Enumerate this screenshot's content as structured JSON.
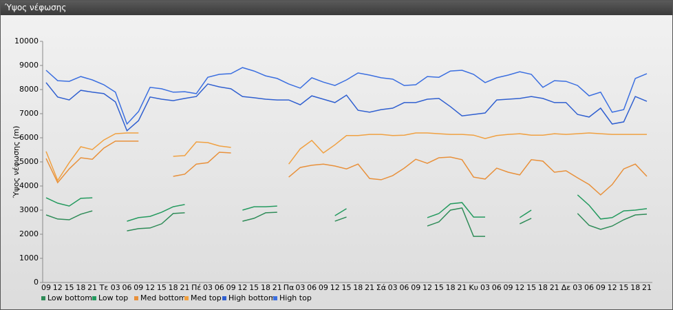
{
  "window_title": "Ύψος νέφωσης",
  "chart_data": {
    "type": "line",
    "y_label": "Ύψος νέφωσης (m)",
    "categories": [
      "09",
      "12",
      "15",
      "18",
      "21",
      "Τε",
      "03",
      "06",
      "09",
      "12",
      "15",
      "18",
      "21",
      "Πέ",
      "03",
      "06",
      "09",
      "12",
      "15",
      "18",
      "21",
      "Πα",
      "03",
      "06",
      "09",
      "12",
      "15",
      "18",
      "21",
      "Σά",
      "03",
      "06",
      "09",
      "12",
      "15",
      "18",
      "21",
      "Κυ",
      "03",
      "06",
      "09",
      "12",
      "15",
      "18",
      "21",
      "Δε",
      "03",
      "06",
      "09",
      "12",
      "15",
      "18",
      "21"
    ],
    "ylim": [
      0,
      10000
    ],
    "yticks": [
      0,
      1000,
      2000,
      3000,
      4000,
      5000,
      6000,
      7000,
      8000,
      9000,
      10000
    ],
    "legend": "bottom-left",
    "series": [
      {
        "name": "Low bottom",
        "color": "#2e8b57",
        "values": [
          2800,
          2630,
          2600,
          2830,
          2970,
          null,
          null,
          2140,
          2230,
          2260,
          2430,
          2860,
          2890,
          null,
          null,
          null,
          null,
          2540,
          2660,
          2890,
          2910,
          null,
          null,
          null,
          null,
          2540,
          2710,
          null,
          null,
          null,
          null,
          null,
          null,
          2340,
          2510,
          3000,
          3090,
          1910,
          1910,
          null,
          null,
          2430,
          2660,
          null,
          null,
          null,
          2860,
          2370,
          2200,
          2340,
          2600,
          2800,
          2830
        ]
      },
      {
        "name": "Low top",
        "color": "#239a5e",
        "values": [
          3510,
          3290,
          3170,
          3490,
          3510,
          null,
          null,
          2540,
          2690,
          2740,
          2910,
          3140,
          3230,
          null,
          null,
          null,
          null,
          3000,
          3140,
          3140,
          3170,
          null,
          null,
          null,
          null,
          2770,
          3060,
          null,
          null,
          null,
          null,
          null,
          null,
          2690,
          2860,
          3260,
          3310,
          2710,
          2710,
          null,
          null,
          2690,
          3000,
          null,
          null,
          null,
          3630,
          3200,
          2630,
          2690,
          2970,
          3000,
          3060
        ]
      },
      {
        "name": "Med bottom",
        "color": "#e8903a",
        "values": [
          5140,
          4140,
          4710,
          5170,
          5110,
          5570,
          5860,
          5860,
          5860,
          null,
          null,
          4400,
          4490,
          4910,
          4970,
          5400,
          5370,
          null,
          null,
          null,
          null,
          4370,
          4770,
          4860,
          4910,
          4830,
          4710,
          4910,
          4310,
          4260,
          4430,
          4740,
          5110,
          4940,
          5170,
          5200,
          5090,
          4370,
          4290,
          4740,
          4570,
          4460,
          5090,
          5030,
          4570,
          4630,
          4340,
          4060,
          3630,
          4060,
          4710,
          4910,
          4400
        ]
      },
      {
        "name": "Med top",
        "color": "#f0a040",
        "values": [
          5430,
          4230,
          4970,
          5630,
          5510,
          5910,
          6170,
          6200,
          6200,
          null,
          null,
          5230,
          5260,
          5830,
          5800,
          5660,
          5600,
          null,
          null,
          null,
          null,
          4910,
          5540,
          5890,
          5370,
          5710,
          6090,
          6090,
          6140,
          6140,
          6090,
          6110,
          6200,
          6200,
          6170,
          6140,
          6140,
          6110,
          5970,
          6090,
          6140,
          6170,
          6110,
          6110,
          6170,
          6140,
          6170,
          6200,
          6170,
          6140,
          6140,
          6140,
          6140
        ]
      },
      {
        "name": "High bottom",
        "color": "#2f5fd0",
        "values": [
          8290,
          7690,
          7570,
          7970,
          7890,
          7830,
          7490,
          6290,
          6710,
          7690,
          7600,
          7540,
          7630,
          7710,
          8230,
          8110,
          8030,
          7710,
          7660,
          7600,
          7570,
          7570,
          7370,
          7740,
          7600,
          7460,
          7770,
          7140,
          7060,
          7170,
          7230,
          7460,
          7460,
          7600,
          7630,
          7290,
          6910,
          6970,
          7030,
          7570,
          7600,
          7630,
          7710,
          7630,
          7460,
          7460,
          6970,
          6860,
          7230,
          6570,
          6660,
          7710,
          7510
        ]
      },
      {
        "name": "High top",
        "color": "#3a6ee0",
        "values": [
          8800,
          8370,
          8340,
          8540,
          8400,
          8200,
          7890,
          6570,
          7090,
          8090,
          8030,
          7890,
          7910,
          7830,
          8510,
          8630,
          8660,
          8910,
          8770,
          8570,
          8460,
          8230,
          8060,
          8490,
          8310,
          8170,
          8400,
          8690,
          8600,
          8490,
          8430,
          8170,
          8200,
          8540,
          8510,
          8770,
          8800,
          8630,
          8290,
          8490,
          8600,
          8740,
          8630,
          8090,
          8370,
          8340,
          8170,
          7740,
          7890,
          7060,
          7170,
          8460,
          8660
        ]
      }
    ]
  }
}
